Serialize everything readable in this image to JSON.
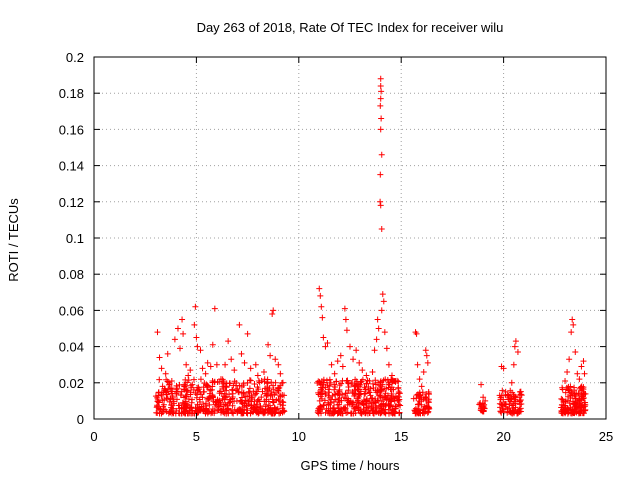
{
  "chart_data": {
    "type": "scatter",
    "title": "Day 263 of 2018, Rate Of TEC Index for receiver wilu",
    "xlabel": "GPS time / hours",
    "ylabel": "ROTI / TECUs",
    "xlim": [
      0,
      25
    ],
    "ylim": [
      0,
      0.2
    ],
    "xticks": [
      0,
      5,
      10,
      15,
      20,
      25
    ],
    "xtick_labels": [
      "0",
      "5",
      "10",
      "15",
      "20",
      "25"
    ],
    "yticks": [
      0,
      0.02,
      0.04,
      0.06,
      0.08,
      0.1,
      0.12,
      0.14,
      0.16,
      0.18,
      0.2
    ],
    "ytick_labels": [
      "0",
      "0.02",
      "0.04",
      "0.06",
      "0.08",
      "0.1",
      "0.12",
      "0.14",
      "0.16",
      "0.18",
      "0.2"
    ],
    "grid": true,
    "marker": "+",
    "color": "#ff0000",
    "series": [
      {
        "name": "ROTI",
        "points": [
          [
            3.1,
            0.048
          ],
          [
            3.2,
            0.034
          ],
          [
            3.3,
            0.028
          ],
          [
            3.35,
            0.018
          ],
          [
            3.5,
            0.025
          ],
          [
            3.6,
            0.036
          ],
          [
            3.8,
            0.021
          ],
          [
            3.95,
            0.044
          ],
          [
            4.1,
            0.05
          ],
          [
            4.2,
            0.039
          ],
          [
            4.3,
            0.055
          ],
          [
            4.35,
            0.047
          ],
          [
            4.5,
            0.03
          ],
          [
            4.6,
            0.024
          ],
          [
            4.7,
            0.027
          ],
          [
            4.8,
            0.019
          ],
          [
            4.9,
            0.052
          ],
          [
            4.95,
            0.062
          ],
          [
            5.0,
            0.045
          ],
          [
            5.05,
            0.04
          ],
          [
            5.2,
            0.038
          ],
          [
            5.3,
            0.028
          ],
          [
            5.45,
            0.025
          ],
          [
            5.55,
            0.031
          ],
          [
            5.7,
            0.029
          ],
          [
            5.8,
            0.041
          ],
          [
            5.9,
            0.061
          ],
          [
            6.0,
            0.03
          ],
          [
            6.2,
            0.022
          ],
          [
            6.4,
            0.03
          ],
          [
            6.55,
            0.043
          ],
          [
            6.7,
            0.033
          ],
          [
            6.85,
            0.027
          ],
          [
            7.1,
            0.052
          ],
          [
            7.2,
            0.036
          ],
          [
            7.35,
            0.031
          ],
          [
            7.5,
            0.047
          ],
          [
            7.65,
            0.028
          ],
          [
            7.9,
            0.03
          ],
          [
            8.0,
            0.024
          ],
          [
            8.3,
            0.026
          ],
          [
            8.5,
            0.041
          ],
          [
            8.6,
            0.035
          ],
          [
            8.7,
            0.058
          ],
          [
            8.75,
            0.06
          ],
          [
            8.85,
            0.033
          ],
          [
            9.0,
            0.03
          ],
          [
            9.1,
            0.025
          ],
          [
            11.0,
            0.072
          ],
          [
            11.05,
            0.068
          ],
          [
            11.1,
            0.062
          ],
          [
            11.15,
            0.056
          ],
          [
            11.2,
            0.045
          ],
          [
            11.3,
            0.04
          ],
          [
            11.4,
            0.042
          ],
          [
            11.6,
            0.03
          ],
          [
            11.75,
            0.025
          ],
          [
            11.9,
            0.032
          ],
          [
            12.05,
            0.035
          ],
          [
            12.15,
            0.029
          ],
          [
            12.25,
            0.061
          ],
          [
            12.3,
            0.055
          ],
          [
            12.35,
            0.049
          ],
          [
            12.5,
            0.04
          ],
          [
            12.65,
            0.033
          ],
          [
            12.8,
            0.038
          ],
          [
            12.95,
            0.031
          ],
          [
            13.1,
            0.027
          ],
          [
            13.3,
            0.024
          ],
          [
            13.45,
            0.021
          ],
          [
            13.6,
            0.026
          ],
          [
            13.7,
            0.038
          ],
          [
            13.8,
            0.044
          ],
          [
            13.85,
            0.055
          ],
          [
            13.9,
            0.05
          ],
          [
            14.0,
            0.188
          ],
          [
            14.0,
            0.184
          ],
          [
            14.02,
            0.181
          ],
          [
            14.0,
            0.177
          ],
          [
            13.98,
            0.173
          ],
          [
            14.02,
            0.166
          ],
          [
            14.0,
            0.16
          ],
          [
            14.05,
            0.146
          ],
          [
            13.98,
            0.135
          ],
          [
            13.97,
            0.12
          ],
          [
            14.0,
            0.118
          ],
          [
            14.05,
            0.105
          ],
          [
            14.1,
            0.069
          ],
          [
            14.15,
            0.065
          ],
          [
            14.05,
            0.06
          ],
          [
            14.2,
            0.048
          ],
          [
            14.3,
            0.039
          ],
          [
            14.4,
            0.03
          ],
          [
            14.55,
            0.024
          ],
          [
            14.7,
            0.021
          ],
          [
            14.85,
            0.017
          ],
          [
            15.7,
            0.048
          ],
          [
            15.75,
            0.047
          ],
          [
            15.8,
            0.03
          ],
          [
            15.9,
            0.022
          ],
          [
            16.0,
            0.018
          ],
          [
            16.1,
            0.026
          ],
          [
            16.2,
            0.038
          ],
          [
            16.25,
            0.035
          ],
          [
            16.3,
            0.031
          ],
          [
            18.9,
            0.019
          ],
          [
            19.0,
            0.012
          ],
          [
            19.1,
            0.01
          ],
          [
            19.9,
            0.029
          ],
          [
            20.0,
            0.028
          ],
          [
            20.1,
            0.015
          ],
          [
            20.2,
            0.013
          ],
          [
            20.4,
            0.02
          ],
          [
            20.5,
            0.03
          ],
          [
            20.55,
            0.04
          ],
          [
            20.6,
            0.043
          ],
          [
            20.7,
            0.037
          ],
          [
            20.8,
            0.015
          ],
          [
            23.0,
            0.021
          ],
          [
            23.1,
            0.026
          ],
          [
            23.2,
            0.033
          ],
          [
            23.3,
            0.048
          ],
          [
            23.35,
            0.055
          ],
          [
            23.4,
            0.052
          ],
          [
            23.5,
            0.037
          ],
          [
            23.6,
            0.025
          ],
          [
            23.7,
            0.022
          ],
          [
            23.8,
            0.029
          ],
          [
            23.9,
            0.032
          ],
          [
            23.95,
            0.025
          ]
        ],
        "clusters": [
          {
            "x_start": 3.0,
            "x_end": 9.3,
            "y_min": 0.003,
            "y_max": 0.022,
            "count": 520
          },
          {
            "x_start": 10.9,
            "x_end": 15.0,
            "y_min": 0.003,
            "y_max": 0.022,
            "count": 380
          },
          {
            "x_start": 15.6,
            "x_end": 16.4,
            "y_min": 0.003,
            "y_max": 0.015,
            "count": 70
          },
          {
            "x_start": 18.8,
            "x_end": 19.1,
            "y_min": 0.004,
            "y_max": 0.009,
            "count": 20
          },
          {
            "x_start": 19.8,
            "x_end": 20.9,
            "y_min": 0.003,
            "y_max": 0.016,
            "count": 80
          },
          {
            "x_start": 22.8,
            "x_end": 24.0,
            "y_min": 0.003,
            "y_max": 0.018,
            "count": 140
          }
        ]
      }
    ]
  }
}
